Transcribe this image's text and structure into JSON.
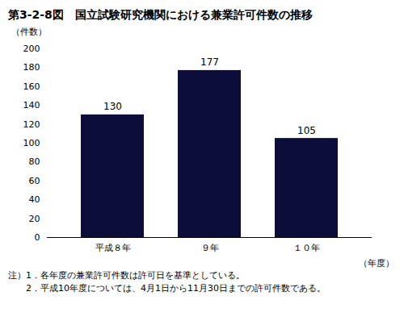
{
  "chart_data": {
    "type": "bar",
    "title": "第3-2-8図",
    "subtitle": "国立試験研究機関における兼業許可件数の推移",
    "categories": [
      "平成８年",
      "９年",
      "１０年"
    ],
    "values": [
      130,
      177,
      105
    ],
    "color": "#0d0d3a",
    "ylabel": "（件数）",
    "xlabel": "（年度）",
    "ylim": [
      0,
      200
    ],
    "yticks": [
      0,
      20,
      40,
      60,
      80,
      100,
      120,
      140,
      160,
      180,
      200
    ],
    "grid": false,
    "data_labels": true,
    "annotations": [
      "注）1．各年度の兼業許可件数は許可日を基準としている。",
      "　　2．平成10年度については、4月1日から11月30日までの許可件数である。"
    ]
  }
}
